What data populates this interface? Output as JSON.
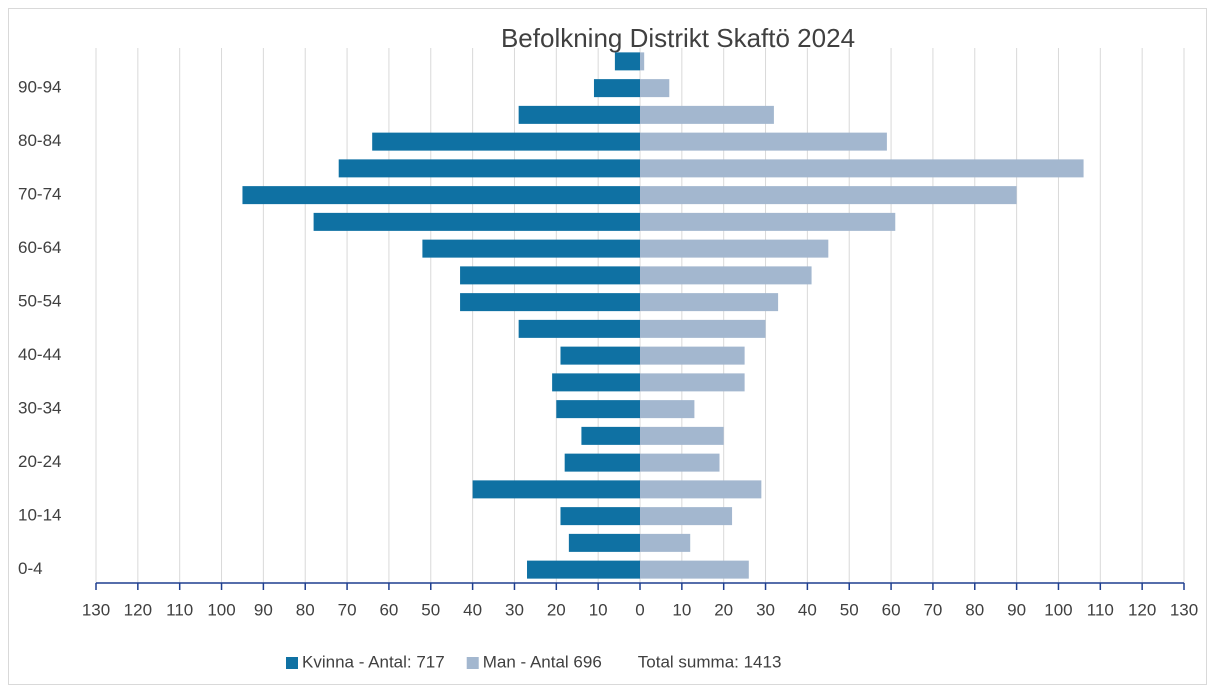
{
  "chart_data": {
    "type": "bar",
    "orientation": "horizontal",
    "stacked": true,
    "title": "Befolkning Distrikt Skaftö 2024",
    "categories": [
      "0-4",
      null,
      "10-14",
      null,
      "20-24",
      null,
      "30-34",
      null,
      "40-44",
      null,
      "50-54",
      null,
      "60-64",
      null,
      "70-74",
      null,
      "80-84",
      null,
      "90-94",
      null
    ],
    "series": [
      {
        "name": "Kvinna - Antal: 717",
        "color": "#0f71a3",
        "values": [
          -27,
          -17,
          -19,
          -40,
          -18,
          -14,
          -20,
          -21,
          -19,
          -29,
          -43,
          -43,
          -52,
          -78,
          -95,
          -72,
          -64,
          -29,
          -11,
          -6
        ]
      },
      {
        "name": "Man - Antal 696",
        "color": "#a3b7cf",
        "values": [
          26,
          12,
          22,
          29,
          19,
          20,
          13,
          25,
          25,
          30,
          33,
          41,
          45,
          61,
          90,
          106,
          59,
          32,
          7,
          1
        ]
      }
    ],
    "legend_note": "Total summa: 1413",
    "xlim": [
      -130,
      130
    ],
    "xticks": [
      {
        "value": -130,
        "label": "130"
      },
      {
        "value": -120,
        "label": "120"
      },
      {
        "value": -110,
        "label": "110"
      },
      {
        "value": -100,
        "label": "100"
      },
      {
        "value": -90,
        "label": "90"
      },
      {
        "value": -80,
        "label": "80"
      },
      {
        "value": -70,
        "label": "70"
      },
      {
        "value": -60,
        "label": "60"
      },
      {
        "value": -50,
        "label": "50"
      },
      {
        "value": -40,
        "label": "40"
      },
      {
        "value": -30,
        "label": "30"
      },
      {
        "value": -20,
        "label": "20"
      },
      {
        "value": -10,
        "label": "10"
      },
      0,
      10,
      20,
      30,
      40,
      50,
      60,
      70,
      80,
      90,
      100,
      110,
      120,
      130
    ],
    "grid": true,
    "legend": "bottom"
  }
}
